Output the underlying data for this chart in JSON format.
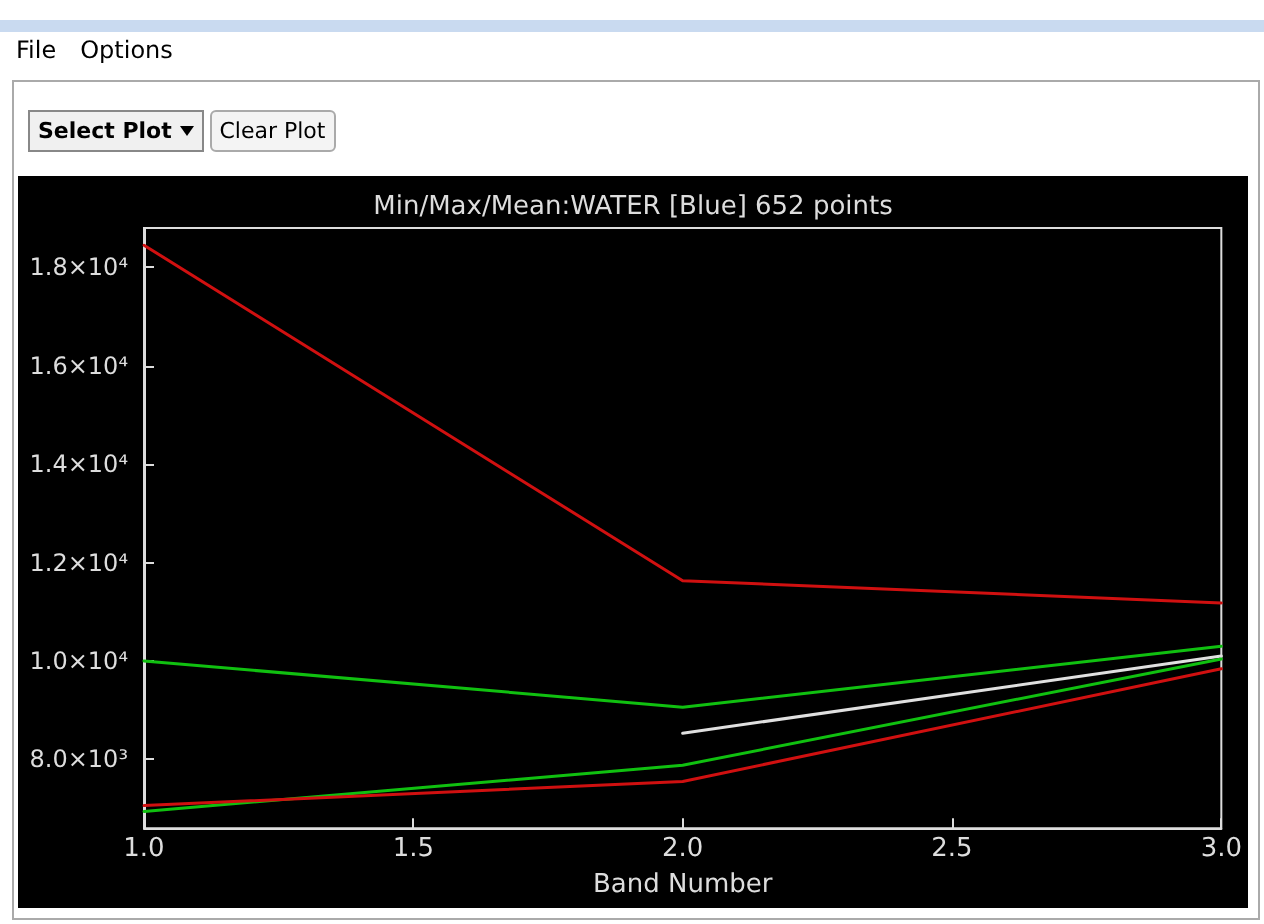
{
  "chart_data": {
    "type": "line",
    "title": "Min/Max/Mean:WATER [Blue] 652 points",
    "xlabel": "Band Number",
    "annotations": [
      "File",
      "Options",
      "Select Plot",
      "Clear Plot"
    ],
    "x": [
      1,
      2,
      3
    ],
    "series": [
      {
        "color": "#d01010",
        "values": [
          18450,
          11630,
          11180
        ]
      },
      {
        "color": "#10c010",
        "values": [
          10000,
          9060,
          10300
        ]
      },
      {
        "color": "#e0e0e0",
        "values": [
          null,
          8530,
          10100
        ]
      },
      {
        "color": "#10c010",
        "values": [
          6940,
          7880,
          10040
        ]
      },
      {
        "color": "#d01010",
        "values": [
          7060,
          7550,
          9840
        ]
      }
    ],
    "xlim": [
      1,
      3
    ],
    "xticks": [
      {
        "value": 1,
        "label": "1.0"
      },
      {
        "value": 1.5,
        "label": "1.5"
      },
      {
        "value": 2,
        "label": "2.0"
      },
      {
        "value": 2.5,
        "label": "2.5"
      },
      {
        "value": 3,
        "label": "3.0"
      }
    ],
    "ylim": [
      6600,
      18800
    ],
    "yticks": [
      {
        "value": 8000,
        "label": "8.0×10³"
      },
      {
        "value": 10000,
        "label": "1.0×10⁴"
      },
      {
        "value": 12000,
        "label": "1.2×10⁴"
      },
      {
        "value": 14000,
        "label": "1.4×10⁴"
      },
      {
        "value": 16000,
        "label": "1.6×10⁴"
      },
      {
        "value": 18000,
        "label": "1.8×10⁴"
      }
    ],
    "grid": false,
    "marker": "none",
    "line_style": "solid"
  }
}
